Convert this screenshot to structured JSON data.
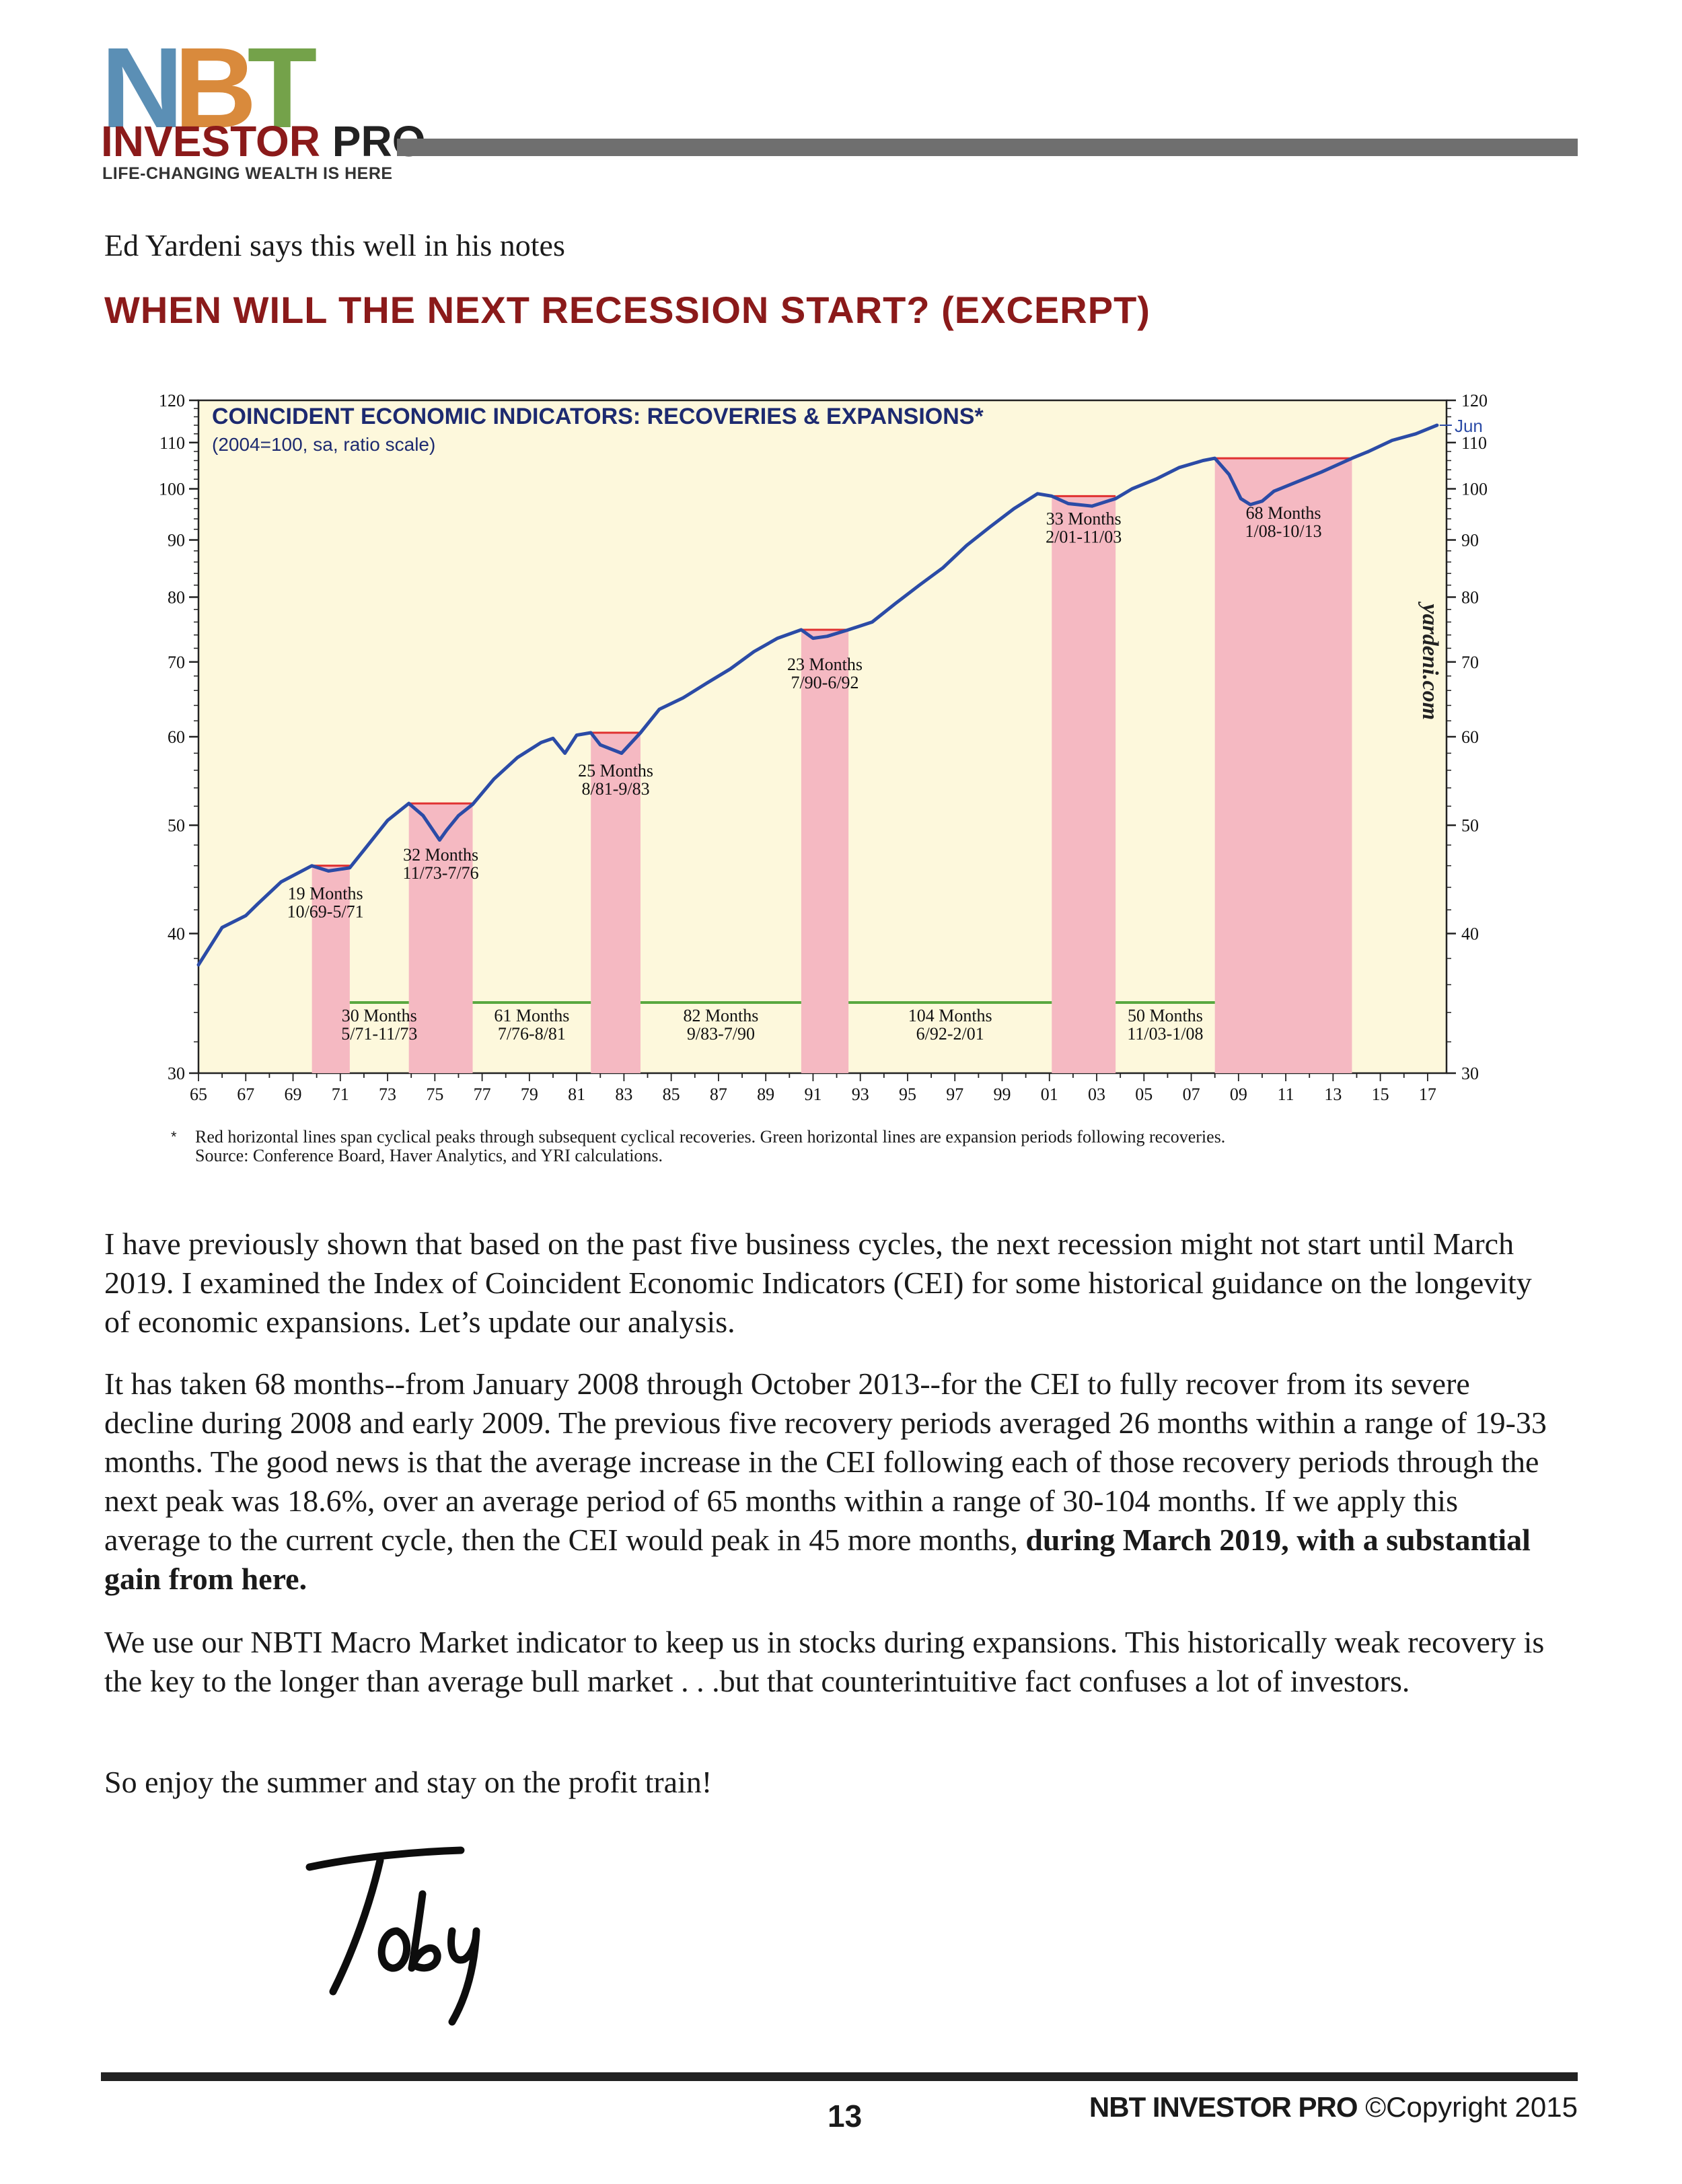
{
  "logo": {
    "letters": [
      "N",
      "B",
      "T"
    ],
    "colors": [
      "#5b8fb5",
      "#d98a3c",
      "#74a24a"
    ],
    "word_main": "INVESTOR",
    "word_accent": "PRO",
    "main_color": "#8b1a1a",
    "accent_color": "#222222",
    "tagline": "LIFE-CHANGING WEALTH IS HERE"
  },
  "intro": "Ed Yardeni says this well in his notes",
  "section_title": "WHEN WILL THE NEXT RECESSION START? (EXCERPT)",
  "chart_data": {
    "type": "line",
    "title": "COINCIDENT ECONOMIC INDICATORS: RECOVERIES & EXPANSIONS*",
    "subtitle": "(2004=100, sa, ratio scale)",
    "watermark": "yardeni.com",
    "end_label": "Jun",
    "yscale": "log",
    "ylim": [
      30,
      120
    ],
    "xlim": [
      1965,
      2017.8
    ],
    "yticks": [
      30,
      40,
      50,
      60,
      70,
      80,
      90,
      100,
      110,
      120
    ],
    "ytick_labels": [
      "30",
      "40",
      "50",
      "60",
      "70",
      "80",
      "90",
      "100",
      "110",
      "120"
    ],
    "xtick_labels": [
      "65",
      "67",
      "69",
      "71",
      "73",
      "75",
      "77",
      "79",
      "81",
      "83",
      "85",
      "87",
      "89",
      "91",
      "93",
      "95",
      "97",
      "99",
      "01",
      "03",
      "05",
      "07",
      "09",
      "11",
      "13",
      "15",
      "17"
    ],
    "series": [
      {
        "name": "CEI",
        "color": "#2b4ba6",
        "x": [
          1965.0,
          1966.0,
          1967.0,
          1967.5,
          1968.5,
          1969.8,
          1970.5,
          1971.4,
          1972.0,
          1973.0,
          1973.9,
          1974.5,
          1975.2,
          1975.5,
          1976.0,
          1976.6,
          1977.5,
          1978.5,
          1979.5,
          1980.0,
          1980.5,
          1981.0,
          1981.6,
          1982.0,
          1982.9,
          1983.7,
          1984.5,
          1985.5,
          1986.5,
          1987.5,
          1988.5,
          1989.5,
          1990.5,
          1991.0,
          1991.6,
          1992.5,
          1993.5,
          1994.5,
          1995.5,
          1996.5,
          1997.5,
          1998.5,
          1999.5,
          2000.5,
          2001.1,
          2001.8,
          2002.8,
          2003.8,
          2004.5,
          2005.5,
          2006.5,
          2007.5,
          2008.0,
          2008.6,
          2009.1,
          2009.5,
          2010.0,
          2010.5,
          2011.5,
          2012.5,
          2013.8,
          2014.5,
          2015.5,
          2016.5,
          2017.4
        ],
        "y": [
          37.5,
          40.5,
          41.5,
          42.5,
          44.5,
          46.0,
          45.5,
          45.8,
          47.5,
          50.5,
          52.3,
          51.0,
          48.5,
          49.5,
          51.0,
          52.2,
          55.0,
          57.5,
          59.3,
          59.8,
          58.0,
          60.2,
          60.5,
          59.0,
          58.0,
          60.5,
          63.5,
          65.0,
          67.0,
          69.0,
          71.5,
          73.5,
          74.8,
          73.5,
          73.8,
          74.8,
          76.0,
          79.0,
          82.0,
          85.0,
          89.0,
          92.5,
          96.0,
          99.0,
          98.5,
          97.0,
          96.5,
          98.0,
          100.0,
          102.0,
          104.5,
          106.0,
          106.5,
          103.0,
          98.0,
          96.8,
          97.5,
          99.5,
          101.5,
          103.5,
          106.5,
          108.0,
          110.5,
          112.0,
          114.0
        ]
      }
    ],
    "recoveries": [
      {
        "start": 1969.8,
        "end": 1971.4,
        "peak": 46.0,
        "label": "19 Months",
        "dates": "10/69-5/71"
      },
      {
        "start": 1973.9,
        "end": 1976.6,
        "peak": 52.3,
        "label": "32 Months",
        "dates": "11/73-7/76"
      },
      {
        "start": 1981.6,
        "end": 1983.7,
        "peak": 60.5,
        "label": "25 Months",
        "dates": "8/81-9/83"
      },
      {
        "start": 1990.5,
        "end": 1992.5,
        "peak": 74.8,
        "label": "23 Months",
        "dates": "7/90-6/92"
      },
      {
        "start": 2001.1,
        "end": 2003.8,
        "peak": 98.5,
        "label": "33 Months",
        "dates": "2/01-11/03"
      },
      {
        "start": 2008.0,
        "end": 2013.8,
        "peak": 106.5,
        "label": "68 Months",
        "dates": "1/08-10/13"
      }
    ],
    "expansions": [
      {
        "start": 1971.4,
        "end": 1973.9,
        "label": "30 Months",
        "dates": "5/71-11/73"
      },
      {
        "start": 1976.6,
        "end": 1981.6,
        "label": "61 Months",
        "dates": "7/76-8/81"
      },
      {
        "start": 1983.7,
        "end": 1990.5,
        "label": "82 Months",
        "dates": "9/83-7/90"
      },
      {
        "start": 1992.5,
        "end": 2001.1,
        "label": "104 Months",
        "dates": "6/92-2/01"
      },
      {
        "start": 2003.8,
        "end": 2008.0,
        "label": "50 Months",
        "dates": "11/03-1/08"
      }
    ],
    "colors": {
      "background": "#fdf8dc",
      "recovery_fill": "#f5b9c2",
      "peak_line": "#e03131",
      "expansion_line": "#59a83f"
    }
  },
  "footnote": {
    "star": "*",
    "line1": "Red horizontal lines span cyclical peaks through subsequent cyclical recoveries. Green horizontal lines are expansion periods following recoveries.",
    "line2": "Source: Conference Board, Haver Analytics, and YRI calculations."
  },
  "paragraphs": {
    "p1": "I have previously shown that based on the past five business cycles, the next recession might not start until March 2019. I examined the Index of Coincident Economic Indicators (CEI) for some historical guidance on the longevity of economic expansions. Let’s update our analysis.",
    "p2_text": "It has taken 68 months--from January 2008 through October 2013--for the CEI to fully recover from its severe decline during 2008 and early 2009. The previous five recovery periods averaged 26 months within a range of 19-33 months. The good news is that the average increase in the CEI following each of those recovery periods through the next peak was 18.6%, over an average period of 65 months within a range of 30-104 months. If we apply this average to the current cycle, then the CEI would peak in 45 more months,",
    "p2_bold": "during March 2019, with a substantial gain from here.",
    "p3": "We use our NBTI Macro Market indicator to keep us in stocks during expansions. This historically weak recovery is the key to the longer than average bull market . . .but that counterintuitive fact confuses a lot of investors.",
    "p4": "So enjoy the summer and stay on the profit train!"
  },
  "signature": "Toby",
  "footer": {
    "page_number": "13",
    "brand": "NBT INVESTOR PRO",
    "copyright": "©Copyright 2015"
  }
}
